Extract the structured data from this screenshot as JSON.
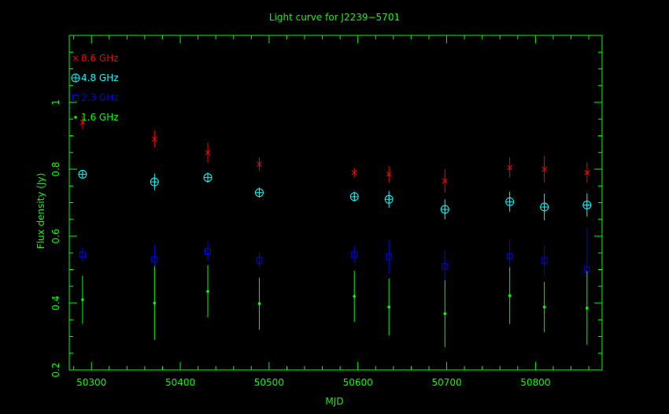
{
  "chart_data": {
    "type": "scatter",
    "title": "Light curve for J2239−5701",
    "xlabel": "MJD",
    "ylabel": "Flux density (Jy)",
    "xlim": [
      50275,
      50875
    ],
    "ylim": [
      0.2,
      1.2
    ],
    "x_ticks": [
      "50300",
      "50400",
      "50500",
      "50600",
      "50700",
      "50800"
    ],
    "y_ticks": [
      "0.2",
      "0.4",
      "0.6",
      "0.8",
      "1"
    ],
    "legend_position": "top-left",
    "colors": {
      "frame": "#00ff00",
      "title": "#00ff00",
      "axis_text": "#00ff00"
    },
    "series": [
      {
        "name": "8.6 GHz",
        "marker": "cross",
        "color": "#ff0000",
        "x": [
          50290,
          50371,
          50431,
          50489,
          50596,
          50635,
          50698,
          50771,
          50810,
          50858
        ],
        "y": [
          0.94,
          0.89,
          0.85,
          0.815,
          0.79,
          0.785,
          0.765,
          0.805,
          0.8,
          0.79
        ],
        "err": [
          0.02,
          0.025,
          0.03,
          0.02,
          0.015,
          0.025,
          0.035,
          0.03,
          0.04,
          0.03
        ]
      },
      {
        "name": "4.8 GHz",
        "marker": "circle-plus",
        "color": "#00ffff",
        "x": [
          50290,
          50371,
          50431,
          50489,
          50596,
          50635,
          50698,
          50771,
          50810,
          50858
        ],
        "y": [
          0.785,
          0.762,
          0.775,
          0.73,
          0.718,
          0.71,
          0.68,
          0.703,
          0.687,
          0.693
        ],
        "err": [
          0.012,
          0.025,
          0.015,
          0.015,
          0.015,
          0.025,
          0.03,
          0.03,
          0.04,
          0.035
        ]
      },
      {
        "name": "2.3 GHz",
        "marker": "square",
        "color": "#0000ff",
        "x": [
          50290,
          50371,
          50431,
          50489,
          50596,
          50635,
          50698,
          50771,
          50810,
          50858
        ],
        "y": [
          0.545,
          0.53,
          0.555,
          0.528,
          0.545,
          0.538,
          0.51,
          0.54,
          0.528,
          0.5
        ],
        "err": [
          0.02,
          0.045,
          0.03,
          0.025,
          0.025,
          0.05,
          0.05,
          0.05,
          0.045,
          0.125
        ]
      },
      {
        "name": "1.6 GHz",
        "marker": "dot",
        "color": "#00ff00",
        "x": [
          50290,
          50371,
          50431,
          50489,
          50596,
          50635,
          50698,
          50771,
          50810,
          50858
        ],
        "y": [
          0.41,
          0.4,
          0.435,
          0.398,
          0.42,
          0.388,
          0.368,
          0.422,
          0.388,
          0.385
        ],
        "err": [
          0.072,
          0.11,
          0.078,
          0.078,
          0.076,
          0.085,
          0.1,
          0.085,
          0.075,
          0.11
        ]
      }
    ]
  }
}
